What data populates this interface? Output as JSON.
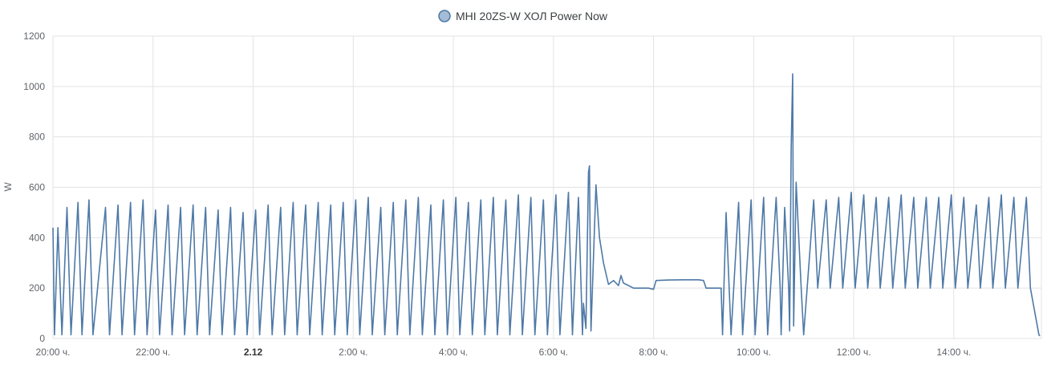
{
  "chart_data": {
    "type": "line",
    "series": [
      {
        "name": "MHI 20ZS-W ХОЛ Power Now",
        "color": "#4e79a7",
        "marker_fill": "#a5bcd6",
        "points": [
          [
            0.0,
            440
          ],
          [
            0.03,
            15
          ],
          [
            0.1,
            440
          ],
          [
            0.18,
            15
          ],
          [
            0.28,
            520
          ],
          [
            0.36,
            15
          ],
          [
            0.5,
            540
          ],
          [
            0.58,
            15
          ],
          [
            0.72,
            550
          ],
          [
            0.8,
            15
          ],
          [
            1.05,
            520
          ],
          [
            1.13,
            15
          ],
          [
            1.3,
            530
          ],
          [
            1.38,
            15
          ],
          [
            1.55,
            540
          ],
          [
            1.63,
            15
          ],
          [
            1.8,
            550
          ],
          [
            1.88,
            15
          ],
          [
            2.05,
            510
          ],
          [
            2.13,
            15
          ],
          [
            2.3,
            530
          ],
          [
            2.38,
            15
          ],
          [
            2.55,
            520
          ],
          [
            2.63,
            15
          ],
          [
            2.8,
            530
          ],
          [
            2.88,
            15
          ],
          [
            3.05,
            520
          ],
          [
            3.13,
            15
          ],
          [
            3.3,
            510
          ],
          [
            3.38,
            15
          ],
          [
            3.55,
            520
          ],
          [
            3.63,
            15
          ],
          [
            3.8,
            500
          ],
          [
            3.88,
            15
          ],
          [
            4.05,
            510
          ],
          [
            4.13,
            15
          ],
          [
            4.3,
            530
          ],
          [
            4.38,
            15
          ],
          [
            4.55,
            520
          ],
          [
            4.63,
            15
          ],
          [
            4.8,
            540
          ],
          [
            4.88,
            15
          ],
          [
            5.05,
            530
          ],
          [
            5.13,
            15
          ],
          [
            5.3,
            540
          ],
          [
            5.38,
            15
          ],
          [
            5.55,
            530
          ],
          [
            5.63,
            15
          ],
          [
            5.8,
            540
          ],
          [
            5.88,
            15
          ],
          [
            6.05,
            550
          ],
          [
            6.13,
            15
          ],
          [
            6.3,
            560
          ],
          [
            6.38,
            15
          ],
          [
            6.55,
            520
          ],
          [
            6.63,
            15
          ],
          [
            6.8,
            540
          ],
          [
            6.88,
            15
          ],
          [
            7.05,
            550
          ],
          [
            7.13,
            15
          ],
          [
            7.3,
            560
          ],
          [
            7.38,
            15
          ],
          [
            7.55,
            530
          ],
          [
            7.63,
            15
          ],
          [
            7.8,
            550
          ],
          [
            7.88,
            15
          ],
          [
            8.05,
            560
          ],
          [
            8.13,
            15
          ],
          [
            8.3,
            540
          ],
          [
            8.38,
            15
          ],
          [
            8.55,
            550
          ],
          [
            8.63,
            15
          ],
          [
            8.8,
            560
          ],
          [
            8.88,
            15
          ],
          [
            9.05,
            550
          ],
          [
            9.13,
            15
          ],
          [
            9.3,
            570
          ],
          [
            9.38,
            15
          ],
          [
            9.55,
            560
          ],
          [
            9.63,
            15
          ],
          [
            9.8,
            550
          ],
          [
            9.88,
            15
          ],
          [
            10.05,
            570
          ],
          [
            10.13,
            15
          ],
          [
            10.3,
            580
          ],
          [
            10.38,
            15
          ],
          [
            10.5,
            560
          ],
          [
            10.58,
            15
          ],
          [
            10.6,
            140
          ],
          [
            10.65,
            40
          ],
          [
            10.7,
            660
          ],
          [
            10.72,
            685
          ],
          [
            10.75,
            30
          ],
          [
            10.85,
            610
          ],
          [
            10.92,
            400
          ],
          [
            11.0,
            300
          ],
          [
            11.1,
            215
          ],
          [
            11.2,
            230
          ],
          [
            11.3,
            210
          ],
          [
            11.35,
            250
          ],
          [
            11.4,
            220
          ],
          [
            11.5,
            210
          ],
          [
            11.6,
            200
          ],
          [
            11.9,
            200
          ],
          [
            12.0,
            195
          ],
          [
            12.05,
            230
          ],
          [
            12.3,
            232
          ],
          [
            12.6,
            233
          ],
          [
            12.9,
            233
          ],
          [
            13.0,
            230
          ],
          [
            13.05,
            200
          ],
          [
            13.35,
            200
          ],
          [
            13.38,
            15
          ],
          [
            13.45,
            500
          ],
          [
            13.55,
            15
          ],
          [
            13.7,
            540
          ],
          [
            13.78,
            15
          ],
          [
            13.95,
            550
          ],
          [
            14.03,
            15
          ],
          [
            14.2,
            560
          ],
          [
            14.28,
            15
          ],
          [
            14.45,
            560
          ],
          [
            14.53,
            200
          ],
          [
            14.55,
            15
          ],
          [
            14.62,
            520
          ],
          [
            14.7,
            200
          ],
          [
            14.72,
            30
          ],
          [
            14.75,
            750
          ],
          [
            14.78,
            1050
          ],
          [
            14.8,
            50
          ],
          [
            14.85,
            620
          ],
          [
            14.95,
            200
          ],
          [
            15.0,
            15
          ],
          [
            15.2,
            550
          ],
          [
            15.28,
            200
          ],
          [
            15.45,
            550
          ],
          [
            15.53,
            200
          ],
          [
            15.7,
            560
          ],
          [
            15.78,
            200
          ],
          [
            15.95,
            580
          ],
          [
            16.03,
            200
          ],
          [
            16.2,
            570
          ],
          [
            16.28,
            200
          ],
          [
            16.45,
            560
          ],
          [
            16.53,
            200
          ],
          [
            16.7,
            560
          ],
          [
            16.78,
            200
          ],
          [
            16.95,
            570
          ],
          [
            17.03,
            200
          ],
          [
            17.2,
            560
          ],
          [
            17.28,
            200
          ],
          [
            17.45,
            560
          ],
          [
            17.53,
            200
          ],
          [
            17.7,
            560
          ],
          [
            17.78,
            200
          ],
          [
            17.95,
            570
          ],
          [
            18.03,
            200
          ],
          [
            18.2,
            560
          ],
          [
            18.28,
            200
          ],
          [
            18.45,
            530
          ],
          [
            18.53,
            200
          ],
          [
            18.7,
            560
          ],
          [
            18.78,
            200
          ],
          [
            18.95,
            570
          ],
          [
            19.03,
            200
          ],
          [
            19.2,
            560
          ],
          [
            19.28,
            200
          ],
          [
            19.45,
            560
          ],
          [
            19.53,
            200
          ],
          [
            19.7,
            15
          ],
          [
            19.72,
            10
          ]
        ]
      }
    ],
    "xlabel": "",
    "ylabel": "W",
    "xlim": [
      0,
      19.75
    ],
    "ylim": [
      0,
      1200
    ],
    "yticks": [
      0,
      200,
      400,
      600,
      800,
      1000,
      1200
    ],
    "xticks": [
      {
        "value": 0,
        "label": "20:00 ч.",
        "bold": false
      },
      {
        "value": 2,
        "label": "22:00 ч.",
        "bold": false
      },
      {
        "value": 4,
        "label": "2.12",
        "bold": true
      },
      {
        "value": 6,
        "label": "2:00 ч.",
        "bold": false
      },
      {
        "value": 8,
        "label": "4:00 ч.",
        "bold": false
      },
      {
        "value": 10,
        "label": "6:00 ч.",
        "bold": false
      },
      {
        "value": 12,
        "label": "8:00 ч.",
        "bold": false
      },
      {
        "value": 14,
        "label": "10:00 ч.",
        "bold": false
      },
      {
        "value": 16,
        "label": "12:00 ч.",
        "bold": false
      },
      {
        "value": 18,
        "label": "14:00 ч.",
        "bold": false
      }
    ],
    "grid": true,
    "legend_position": "top-center"
  }
}
